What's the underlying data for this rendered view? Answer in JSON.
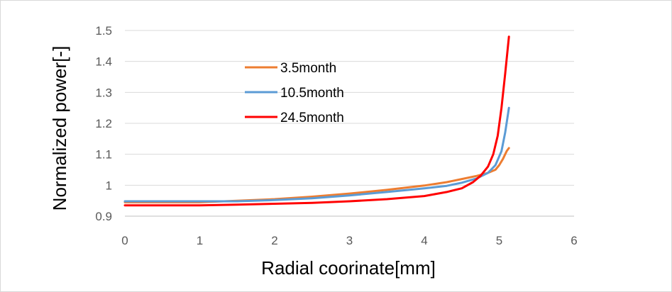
{
  "chart_data": {
    "type": "line",
    "title": "",
    "xlabel": "Radial coorinate[mm]",
    "ylabel": "Normalized power[-]",
    "xlim": [
      0,
      6
    ],
    "ylim": [
      0.9,
      1.5
    ],
    "x_ticks": [
      "0",
      "1",
      "2",
      "3",
      "4",
      "5",
      "6"
    ],
    "y_ticks": [
      "0.9",
      "1",
      "1.1",
      "1.2",
      "1.3",
      "1.4",
      "1.5"
    ],
    "grid": "horizontal",
    "legend_position": "inside-top-left",
    "series": [
      {
        "name": "3.5month",
        "color": "#ED7D31",
        "points": [
          [
            0,
            0.945
          ],
          [
            1,
            0.945
          ],
          [
            1.5,
            0.95
          ],
          [
            2,
            0.955
          ],
          [
            2.5,
            0.963
          ],
          [
            3,
            0.973
          ],
          [
            3.5,
            0.985
          ],
          [
            4,
            0.999
          ],
          [
            4.3,
            1.01
          ],
          [
            4.5,
            1.02
          ],
          [
            4.7,
            1.03
          ],
          [
            4.85,
            1.04
          ],
          [
            4.95,
            1.05
          ],
          [
            5.0,
            1.065
          ],
          [
            5.05,
            1.085
          ],
          [
            5.1,
            1.11
          ],
          [
            5.13,
            1.12
          ]
        ]
      },
      {
        "name": "10.5month",
        "color": "#5B9BD5",
        "points": [
          [
            0,
            0.948
          ],
          [
            1,
            0.948
          ],
          [
            1.5,
            0.948
          ],
          [
            2,
            0.952
          ],
          [
            2.5,
            0.958
          ],
          [
            3,
            0.967
          ],
          [
            3.5,
            0.978
          ],
          [
            4,
            0.99
          ],
          [
            4.3,
            0.998
          ],
          [
            4.5,
            1.008
          ],
          [
            4.7,
            1.022
          ],
          [
            4.85,
            1.04
          ],
          [
            4.95,
            1.065
          ],
          [
            5.03,
            1.11
          ],
          [
            5.08,
            1.17
          ],
          [
            5.13,
            1.25
          ]
        ]
      },
      {
        "name": "24.5month",
        "color": "#FF0000",
        "points": [
          [
            0,
            0.935
          ],
          [
            1,
            0.935
          ],
          [
            1.5,
            0.937
          ],
          [
            2,
            0.94
          ],
          [
            2.5,
            0.943
          ],
          [
            3,
            0.948
          ],
          [
            3.5,
            0.955
          ],
          [
            4,
            0.965
          ],
          [
            4.3,
            0.978
          ],
          [
            4.5,
            0.99
          ],
          [
            4.65,
            1.01
          ],
          [
            4.75,
            1.03
          ],
          [
            4.85,
            1.06
          ],
          [
            4.92,
            1.1
          ],
          [
            4.98,
            1.16
          ],
          [
            5.03,
            1.25
          ],
          [
            5.08,
            1.36
          ],
          [
            5.13,
            1.48
          ]
        ]
      }
    ]
  }
}
